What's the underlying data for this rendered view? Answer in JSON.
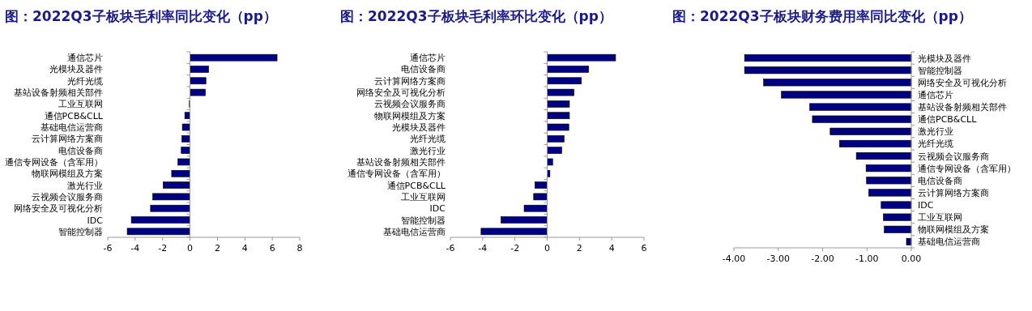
{
  "chart_data": [
    {
      "type": "bar",
      "orientation": "horizontal",
      "title": "图：2022Q3子板块毛利率同比变化（pp）",
      "color": "#000080",
      "categories": [
        "通信芯片",
        "光模块及器件",
        "光纤光缆",
        "基站设备射频相关部件",
        "工业互联网",
        "通信PCB&CLL",
        "基础电信运营商",
        "云计算网络方案商",
        "电信设备商",
        "通信专网设备（含军用）",
        "物联网模组及方案",
        "激光行业",
        "云视频会议服务商",
        "网络安全及可视化分析",
        "IDC",
        "智能控制器"
      ],
      "values": [
        6.35,
        1.36,
        1.16,
        1.12,
        -0.05,
        -0.38,
        -0.56,
        -0.6,
        -0.64,
        -0.88,
        -1.34,
        -1.96,
        -2.72,
        -2.88,
        -4.28,
        -4.58
      ],
      "xlim": [
        -6,
        8
      ],
      "xticks": [
        -6,
        -4,
        -2,
        0,
        2,
        4,
        6,
        8
      ]
    },
    {
      "type": "bar",
      "orientation": "horizontal",
      "title": "图：2022Q3子板块毛利率环比变化（pp）",
      "color": "#000080",
      "categories": [
        "通信芯片",
        "电信设备商",
        "云计算网络方案商",
        "网络安全及可视化分析",
        "云视频会议服务商",
        "物联网模组及方案",
        "光模块及器件",
        "光纤光缆",
        "激光行业",
        "基站设备射频相关部件",
        "通信专网设备（含军用）",
        "通信PCB&CLL",
        "工业互联网",
        "IDC",
        "智能控制器",
        "基础电信运营商"
      ],
      "values": [
        4.24,
        2.57,
        2.12,
        1.66,
        1.38,
        1.38,
        1.34,
        1.05,
        0.9,
        0.34,
        0.17,
        -0.76,
        -0.84,
        -1.43,
        -2.86,
        -4.1
      ],
      "xlim": [
        -6,
        6
      ],
      "xticks": [
        -6,
        -4,
        -2,
        0,
        2,
        4,
        6
      ]
    },
    {
      "type": "bar",
      "orientation": "horizontal",
      "title": "图：2022Q3子板块财务费用率同比变化（pp）",
      "color": "#000080",
      "categories": [
        "光模块及器件",
        "智能控制器",
        "网络安全及可视化分析",
        "通信芯片",
        "基站设备射频相关部件",
        "通信PCB&CLL",
        "激光行业",
        "光纤光缆",
        "云视频会议服务商",
        "通信专网设备（含军用）",
        "电信设备商",
        "云计算网络方案商",
        "IDC",
        "工业互联网",
        "物联网模组及方案",
        "基础电信运营商"
      ],
      "values": [
        -3.76,
        -3.76,
        -3.33,
        -2.93,
        -2.29,
        -2.23,
        -1.83,
        -1.62,
        -1.24,
        -1.02,
        -1.01,
        -0.96,
        -0.68,
        -0.63,
        -0.61,
        -0.11
      ],
      "xlim": [
        -4,
        0
      ],
      "xticks": [
        {
          "value": -4,
          "label": "-4.00"
        },
        {
          "value": -3,
          "label": "-3.00"
        },
        {
          "value": -2,
          "label": "-2.00"
        },
        {
          "value": -1,
          "label": "-1.00"
        },
        {
          "value": 0,
          "label": "0.00"
        }
      ]
    }
  ]
}
